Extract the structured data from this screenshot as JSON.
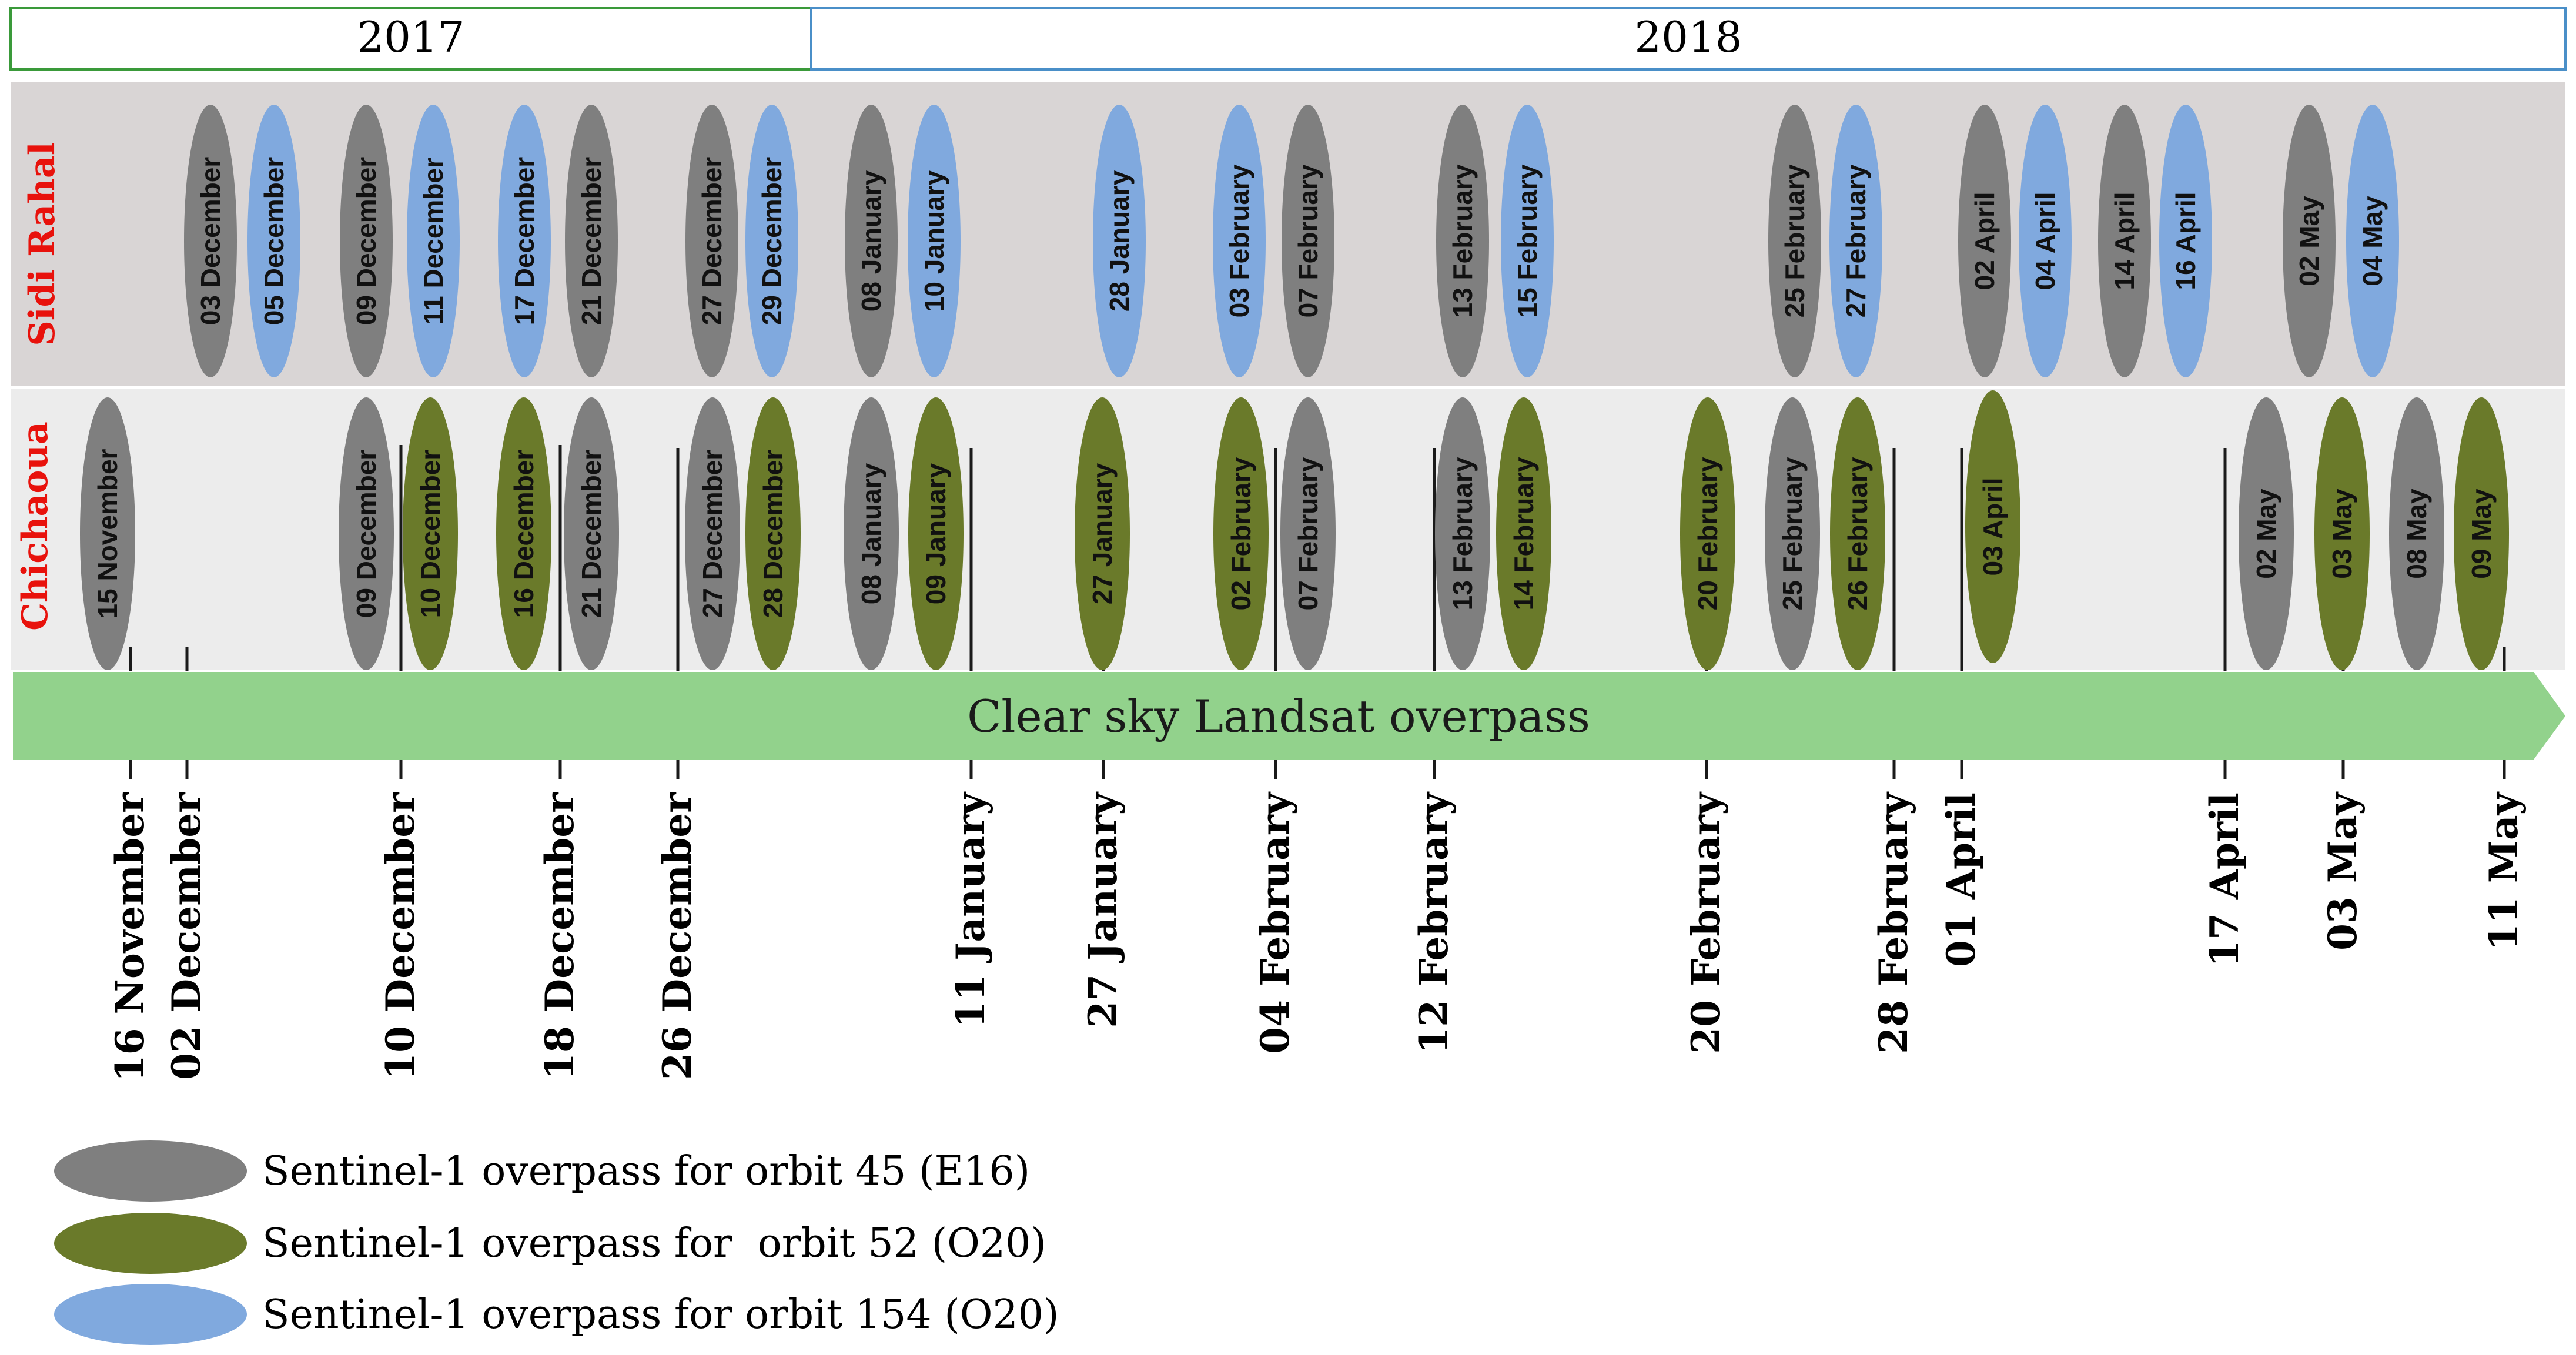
{
  "colors": {
    "orbit45": "#7f7f7f",
    "orbit52": "#6a7a2a",
    "orbit154": "#80a9de",
    "year2017_border": "#3a9a3a",
    "year2018_border": "#4a8fc8",
    "band_sidi": "#d9d5d5",
    "band_chichaoua": "#ececec",
    "arrow": "#92d28c",
    "site_label": "#e8120c"
  },
  "years": [
    {
      "label": "2017"
    },
    {
      "label": "2018"
    }
  ],
  "sites": {
    "sidi_rahal": {
      "label": "Sidi Rahal",
      "overpasses": [
        {
          "date": "03 December",
          "orbit": "45"
        },
        {
          "date": "05 December",
          "orbit": "154"
        },
        {
          "date": "09 December",
          "orbit": "45"
        },
        {
          "date": "11 December",
          "orbit": "154"
        },
        {
          "date": "17 December",
          "orbit": "154"
        },
        {
          "date": "21 December",
          "orbit": "45"
        },
        {
          "date": "27 December",
          "orbit": "45"
        },
        {
          "date": "29 December",
          "orbit": "154"
        },
        {
          "date": "08 January",
          "orbit": "45"
        },
        {
          "date": "10 January",
          "orbit": "154"
        },
        {
          "date": "28 January",
          "orbit": "154"
        },
        {
          "date": "03 February",
          "orbit": "154"
        },
        {
          "date": "07 February",
          "orbit": "45"
        },
        {
          "date": "13 February",
          "orbit": "45"
        },
        {
          "date": "15 February",
          "orbit": "154"
        },
        {
          "date": "25 February",
          "orbit": "45"
        },
        {
          "date": "27 February",
          "orbit": "154"
        },
        {
          "date": "02 April",
          "orbit": "45"
        },
        {
          "date": "04 April",
          "orbit": "154"
        },
        {
          "date": "14 April",
          "orbit": "45"
        },
        {
          "date": "16 April",
          "orbit": "154"
        },
        {
          "date": "02 May",
          "orbit": "45"
        },
        {
          "date": "04 May",
          "orbit": "154"
        }
      ]
    },
    "chichaoua": {
      "label": "Chichaoua",
      "overpasses": [
        {
          "date": "15 November",
          "orbit": "45"
        },
        {
          "date": "09 December",
          "orbit": "45"
        },
        {
          "date": "10 December",
          "orbit": "52"
        },
        {
          "date": "16 December",
          "orbit": "52"
        },
        {
          "date": "21 December",
          "orbit": "45"
        },
        {
          "date": "27 December",
          "orbit": "45"
        },
        {
          "date": "28 December",
          "orbit": "52"
        },
        {
          "date": "08 January",
          "orbit": "45"
        },
        {
          "date": "09 January",
          "orbit": "52"
        },
        {
          "date": "27 January",
          "orbit": "52"
        },
        {
          "date": "02 February",
          "orbit": "52"
        },
        {
          "date": "07 February",
          "orbit": "45"
        },
        {
          "date": "13 February",
          "orbit": "45"
        },
        {
          "date": "14 February",
          "orbit": "52"
        },
        {
          "date": "20 February",
          "orbit": "52"
        },
        {
          "date": "25 February",
          "orbit": "45"
        },
        {
          "date": "26 February",
          "orbit": "52"
        },
        {
          "date": "03 April",
          "orbit": "52"
        },
        {
          "date": "02 May",
          "orbit": "45"
        },
        {
          "date": "03 May",
          "orbit": "52"
        },
        {
          "date": "08 May",
          "orbit": "45"
        },
        {
          "date": "09 May",
          "orbit": "52"
        }
      ]
    }
  },
  "landsat": {
    "label": "Clear sky Landsat overpass",
    "dates": [
      "16 November",
      "02 December",
      "10 December",
      "18 December",
      "26 December",
      "11 January",
      "27 January",
      "04 February",
      "12 February",
      "20 February",
      "28 February",
      "01 April",
      "17 April",
      "03 May",
      "11 May"
    ]
  },
  "legend": [
    {
      "orbit": "45",
      "label": "Sentinel-1 overpass for orbit 45 (E16)"
    },
    {
      "orbit": "52",
      "label": "Sentinel-1 overpass for  orbit 52 (O20)"
    },
    {
      "orbit": "154",
      "label": "Sentinel-1 overpass for orbit 154 (O20)"
    }
  ]
}
